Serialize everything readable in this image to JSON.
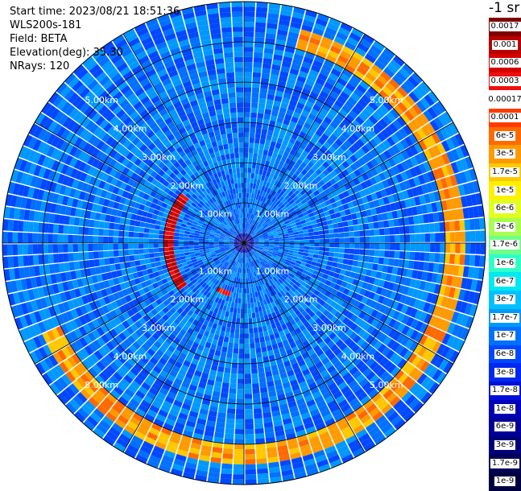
{
  "header": {
    "start_time": "Start time: 2023/08/21 18:51:36",
    "instrument": "WLS200s-181",
    "field": "Field: BETA",
    "elevation": "Elevation(deg): 35.30",
    "nrays": "NRays: 120"
  },
  "colorbar": {
    "unit": "-1 sr",
    "levels": [
      {
        "label": "0.0017",
        "color": "#7f0000"
      },
      {
        "label": "0.001",
        "color": "#b80000"
      },
      {
        "label": "0.0006",
        "color": "#d40000"
      },
      {
        "label": "0.0003",
        "color": "#ee1010"
      },
      {
        "label": "0.00017",
        "color": "#ffffff"
      },
      {
        "label": "0.0001",
        "color": "#ff3a00"
      },
      {
        "label": "6e-5",
        "color": "#ff6a00"
      },
      {
        "label": "3e-5",
        "color": "#ff9a00"
      },
      {
        "label": "1.7e-5",
        "color": "#ffc800"
      },
      {
        "label": "1e-5",
        "color": "#fff000"
      },
      {
        "label": "6e-6",
        "color": "#e0ff20"
      },
      {
        "label": "3e-6",
        "color": "#a8ff50"
      },
      {
        "label": "1.7e-6",
        "color": "#70ff88"
      },
      {
        "label": "1e-6",
        "color": "#30ffc8"
      },
      {
        "label": "6e-7",
        "color": "#00e8f0"
      },
      {
        "label": "3e-7",
        "color": "#00c0ff"
      },
      {
        "label": "1.7e-7",
        "color": "#0098ff"
      },
      {
        "label": "1e-7",
        "color": "#0070ff"
      },
      {
        "label": "6e-8",
        "color": "#0048ff"
      },
      {
        "label": "3e-8",
        "color": "#0028f0"
      },
      {
        "label": "1.7e-8",
        "color": "#0010d8"
      },
      {
        "label": "1e-8",
        "color": "#0000b8"
      },
      {
        "label": "6e-9",
        "color": "#000098"
      },
      {
        "label": "3e-9",
        "color": "#000078"
      },
      {
        "label": "1.7e-9",
        "color": "#000058"
      },
      {
        "label": "1e-9",
        "color": "#000040"
      }
    ]
  },
  "chart_data": {
    "type": "heatmap",
    "projection": "polar PPI",
    "field": "BETA",
    "nrays": 120,
    "azimuth_range_deg": [
      0,
      360
    ],
    "range_km": [
      0,
      6
    ],
    "range_rings_km": [
      1,
      2,
      3,
      4,
      5
    ],
    "range_ring_labels": [
      "1.00km",
      "2.00km",
      "3.00km",
      "4.00km",
      "5.00km"
    ],
    "spoke_interval_deg": 30,
    "background_class": "1e-7",
    "features": [
      {
        "description": "strong backscatter arc",
        "range_km": [
          1.7,
          2.0
        ],
        "azimuth_deg": [
          235,
          310
        ],
        "class": "0.0006"
      },
      {
        "description": "outer aerosol ring",
        "range_km": [
          5.0,
          5.5
        ],
        "azimuth_deg": [
          15,
          245
        ],
        "class": "3e-5"
      },
      {
        "description": "small strong patch",
        "range_km": [
          1.2,
          1.4
        ],
        "azimuth_deg": [
          195,
          210
        ],
        "class": "0.0003"
      }
    ]
  }
}
